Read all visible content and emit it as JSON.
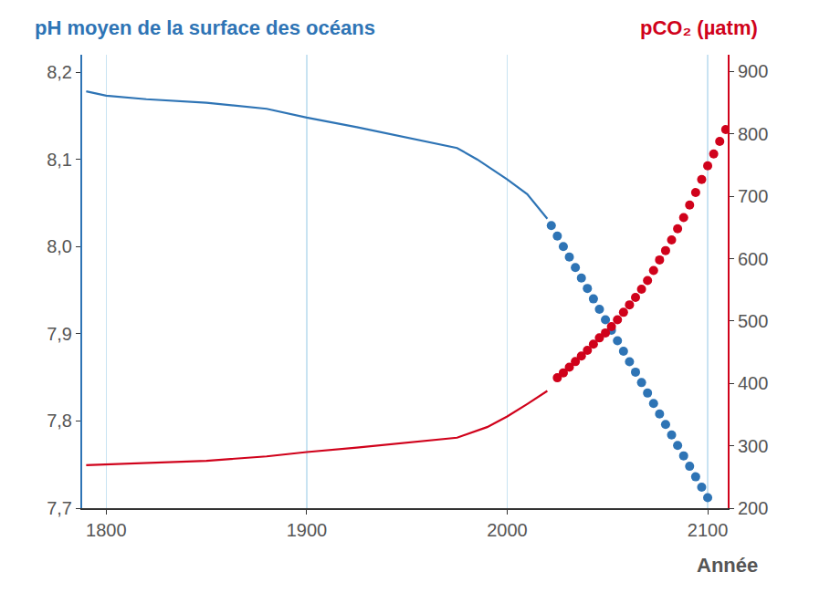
{
  "chart_data": {
    "type": "line",
    "ylabel": "pH moyen de la surface des océans",
    "y2label": "pCO₂ (µatm)",
    "xlabel": "Année",
    "grid": true,
    "xlim": [
      1788,
      2110
    ],
    "xticks": [
      1800,
      1900,
      2000,
      2100
    ],
    "ylim": [
      7.7,
      8.22
    ],
    "yticks": [
      {
        "value": 7.7,
        "label": "7,7"
      },
      {
        "value": 7.8,
        "label": "7,8"
      },
      {
        "value": 7.9,
        "label": "7,9"
      },
      {
        "value": 8.0,
        "label": "8,0"
      },
      {
        "value": 8.1,
        "label": "8,1"
      },
      {
        "value": 8.2,
        "label": "8,2"
      }
    ],
    "y2lim": [
      200,
      927
    ],
    "y2ticks": [
      200,
      300,
      400,
      500,
      600,
      700,
      800,
      900
    ],
    "series": [
      {
        "type": "line",
        "line_style": "solid",
        "color": "#2e74b5",
        "x": [
          1790,
          1800,
          1820,
          1850,
          1880,
          1900,
          1925,
          1950,
          1975,
          1985,
          2000,
          2010,
          2020
        ],
        "values": [
          8.178,
          8.173,
          8.169,
          8.165,
          8.158,
          8.148,
          8.137,
          8.125,
          8.113,
          8.1,
          8.077,
          8.06,
          8.032
        ]
      },
      {
        "type": "scatter",
        "marker": "circle",
        "color": "#2e74b5",
        "x": [
          2022,
          2025,
          2028,
          2031,
          2034,
          2037,
          2040,
          2043,
          2046,
          2049,
          2052,
          2055,
          2058,
          2061,
          2064,
          2067,
          2070,
          2073,
          2076,
          2079,
          2082,
          2085,
          2088,
          2091,
          2094,
          2097,
          2100
        ],
        "values": [
          8.024,
          8.012,
          8.0,
          7.988,
          7.976,
          7.964,
          7.952,
          7.94,
          7.928,
          7.916,
          7.904,
          7.892,
          7.88,
          7.868,
          7.856,
          7.844,
          7.832,
          7.82,
          7.808,
          7.796,
          7.784,
          7.772,
          7.76,
          7.748,
          7.736,
          7.724,
          7.712
        ]
      },
      {
        "type": "line",
        "line_style": "solid",
        "color": "#d0021b",
        "axis": "y2",
        "x": [
          1790,
          1850,
          1880,
          1900,
          1925,
          1950,
          1975,
          1990,
          2000,
          2010,
          2020
        ],
        "values": [
          269,
          276,
          283,
          290,
          297,
          305,
          313,
          330,
          347,
          367,
          388
        ]
      },
      {
        "type": "scatter",
        "marker": "circle",
        "color": "#d0021b",
        "axis": "y2",
        "x": [
          2025,
          2028,
          2031,
          2034,
          2037,
          2040,
          2043,
          2046,
          2049,
          2052,
          2055,
          2058,
          2061,
          2064,
          2067,
          2070,
          2073,
          2076,
          2079,
          2082,
          2085,
          2088,
          2091,
          2094,
          2097,
          2100,
          2103,
          2106,
          2109
        ],
        "values": [
          409,
          417,
          426,
          435,
          444,
          453,
          463,
          473,
          481,
          491,
          502,
          514,
          526,
          538,
          551,
          565,
          581,
          598,
          613,
          630,
          648,
          666,
          686,
          706,
          727,
          749,
          768,
          788,
          807
        ]
      }
    ]
  }
}
